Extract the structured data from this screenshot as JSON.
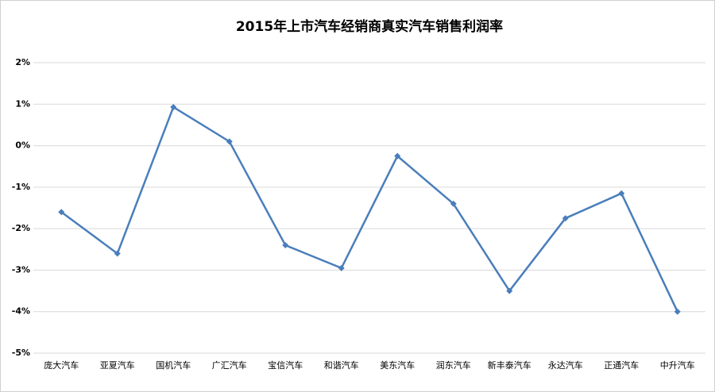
{
  "chart_data": {
    "type": "line",
    "title": "2015年上市汽车经销商真实汽车销售利润率",
    "categories": [
      "庞大汽车",
      "亚夏汽车",
      "国机汽车",
      "广汇汽车",
      "宝信汽车",
      "和谐汽车",
      "美东汽车",
      "润东汽车",
      "新丰泰汽车",
      "永达汽车",
      "正通汽车",
      "中升汽车"
    ],
    "series": [
      {
        "color": "#4a7ebb",
        "values": [
          -1.6,
          -2.6,
          0.93,
          0.1,
          -2.4,
          -2.95,
          -0.25,
          -1.4,
          -3.5,
          -1.75,
          -1.15,
          -4.0
        ]
      }
    ],
    "ylim": [
      -5,
      2
    ],
    "yticks": [
      {
        "value": -5,
        "label": "-5%"
      },
      {
        "value": -4,
        "label": "-4%"
      },
      {
        "value": -3,
        "label": "-3%"
      },
      {
        "value": -2,
        "label": "-2%"
      },
      {
        "value": -1,
        "label": "-1%"
      },
      {
        "value": 0,
        "label": "0%"
      },
      {
        "value": 1,
        "label": "1%"
      },
      {
        "value": 2,
        "label": "2%"
      }
    ],
    "grid": true
  }
}
